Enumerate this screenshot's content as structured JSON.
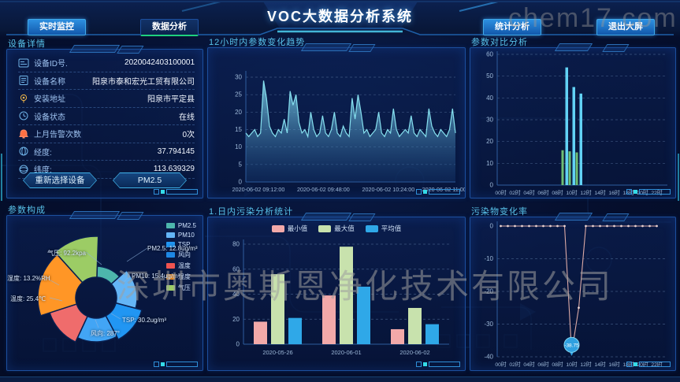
{
  "header": {
    "title": "VOC大数据分析系统",
    "nav": [
      {
        "id": "realtime",
        "label": "实时监控",
        "active": false
      },
      {
        "id": "analysis",
        "label": "数据分析",
        "active": true
      },
      {
        "id": "stats",
        "label": "统计分析",
        "active": false
      },
      {
        "id": "exit",
        "label": "退出大屏",
        "active": false
      }
    ]
  },
  "watermarks": {
    "logo": "chem17.com",
    "company": "深圳市奥斯恩净化技术有限公司"
  },
  "device_panel": {
    "title": "设备详情",
    "rows": [
      {
        "icon": "id-card-icon",
        "label": "设备ID号.",
        "value": "2020042403100001"
      },
      {
        "icon": "document-icon",
        "label": "设备名称",
        "value": "阳泉市泰和宏光工贸有限公司"
      },
      {
        "icon": "location-icon",
        "label": "安装地址",
        "value": "阳泉市平定县"
      },
      {
        "icon": "clock-icon",
        "label": "设备状态",
        "value": "在线"
      },
      {
        "icon": "alarm-bell-icon",
        "label": "上月告警次数",
        "value": "0次"
      },
      {
        "icon": "longitude-icon",
        "label": "经度:",
        "value": "37.794145"
      },
      {
        "icon": "latitude-icon",
        "label": "纬度:",
        "value": "113.639329"
      }
    ],
    "buttons": [
      {
        "id": "reselect-device",
        "label": "重新选择设备"
      },
      {
        "id": "pm25",
        "label": "PM2.5"
      }
    ]
  },
  "trend_panel": {
    "title": "12小时内参数变化趋势",
    "chart_data": {
      "type": "area",
      "ylim": [
        0,
        30
      ],
      "yticks": [
        0,
        5,
        10,
        15,
        20,
        25,
        30
      ],
      "x_labels": [
        "2020-06-02 09:12:00",
        "2020-06-02 09:48:00",
        "2020-06-02 10:24:00",
        "2020-06-02 11:00:00"
      ],
      "line_color": "#86e0ef",
      "values": [
        14,
        13,
        14,
        15,
        13,
        14,
        29,
        24,
        16,
        14,
        13,
        15,
        14,
        18,
        14,
        26,
        22,
        25,
        17,
        14,
        15,
        13,
        20,
        15,
        13,
        14,
        19,
        14,
        13,
        15,
        20,
        14,
        13,
        16,
        14,
        13,
        24,
        18,
        25,
        20,
        14,
        15,
        13,
        14,
        15,
        20,
        14,
        13,
        15,
        14,
        21,
        15,
        13,
        14,
        15,
        14,
        19,
        14,
        13,
        15,
        14,
        13,
        21,
        16,
        14,
        13,
        15,
        14,
        13,
        15,
        21,
        14
      ]
    }
  },
  "daily_panel": {
    "title": "1.日内污染分析统计",
    "chart_data": {
      "type": "bar",
      "categories": [
        "2020-05-26",
        "2020-06-01",
        "2020-06-02"
      ],
      "series": [
        {
          "name": "最小值",
          "color": "#f2a9a9",
          "values": [
            18,
            39,
            12
          ]
        },
        {
          "name": "最大值",
          "color": "#c8e2ad",
          "values": [
            56,
            78,
            29
          ]
        },
        {
          "name": "平均值",
          "color": "#2fa8e8",
          "values": [
            21,
            46,
            16
          ]
        }
      ],
      "ylim": [
        0,
        80
      ],
      "yticks": [
        0,
        20,
        40,
        60,
        80
      ],
      "legend_position": "top"
    }
  },
  "compare_panel": {
    "title": "参数对比分析",
    "chart_data": {
      "type": "bar",
      "x_labels": [
        "00时",
        "02时",
        "04时",
        "06时",
        "08时",
        "10时",
        "12时",
        "14时",
        "16时",
        "18时",
        "20时",
        "22时"
      ],
      "hours_span": 24,
      "ylim": [
        0,
        60
      ],
      "yticks": [
        0,
        10,
        20,
        30,
        40,
        50,
        60
      ],
      "series": [
        {
          "name": "series-green",
          "color": "#6fbf74",
          "points": [
            {
              "hour": 9,
              "value": 16
            },
            {
              "hour": 10,
              "value": 15.5
            },
            {
              "hour": 11,
              "value": 15
            }
          ]
        },
        {
          "name": "series-blue",
          "color": "#62d2f5",
          "points": [
            {
              "hour": 9,
              "value": 54
            },
            {
              "hour": 10,
              "value": 45
            },
            {
              "hour": 11,
              "value": 42
            }
          ]
        }
      ]
    }
  },
  "rate_panel": {
    "title": "污染物变化率",
    "chart_data": {
      "type": "line",
      "x_labels": [
        "00时",
        "02时",
        "04时",
        "06时",
        "08时",
        "10时",
        "12时",
        "14时",
        "16时",
        "18时",
        "20时",
        "22时"
      ],
      "hours_span": 24,
      "ylim": [
        -40,
        0
      ],
      "yticks": [
        0,
        -10,
        -20,
        -30,
        -40
      ],
      "line_color": "#dcaaa6",
      "min_label": "-38.75",
      "points": [
        {
          "hour": 0,
          "value": 0
        },
        {
          "hour": 1,
          "value": 0
        },
        {
          "hour": 2,
          "value": 0
        },
        {
          "hour": 3,
          "value": 0
        },
        {
          "hour": 4,
          "value": 0
        },
        {
          "hour": 5,
          "value": 0
        },
        {
          "hour": 6,
          "value": 0
        },
        {
          "hour": 7,
          "value": 0
        },
        {
          "hour": 8,
          "value": 0
        },
        {
          "hour": 9,
          "value": 0
        },
        {
          "hour": 10,
          "value": -38.75
        },
        {
          "hour": 11,
          "value": -25
        },
        {
          "hour": 12,
          "value": 0
        },
        {
          "hour": 13,
          "value": 0
        },
        {
          "hour": 14,
          "value": 0
        },
        {
          "hour": 15,
          "value": 0
        },
        {
          "hour": 16,
          "value": 0
        },
        {
          "hour": 17,
          "value": 0
        },
        {
          "hour": 18,
          "value": 0
        },
        {
          "hour": 19,
          "value": 0
        },
        {
          "hour": 20,
          "value": 0
        },
        {
          "hour": 21,
          "value": 0
        },
        {
          "hour": 22,
          "value": 0
        }
      ]
    }
  },
  "composition_panel": {
    "title": "参数构成",
    "chart_data": {
      "type": "pie",
      "style": "nightingale-rose",
      "legend": [
        {
          "label": "PM2.5",
          "color": "#4db6ac"
        },
        {
          "label": "PM10",
          "color": "#64b5f6"
        },
        {
          "label": "TSP",
          "color": "#2196f3"
        },
        {
          "label": "风向",
          "color": "#1e88e5"
        },
        {
          "label": "温度",
          "color": "#ef5350"
        },
        {
          "label": "湿度",
          "color": "#ff9626"
        },
        {
          "label": "气压",
          "color": "#9ccc65"
        }
      ],
      "slices": [
        {
          "name": "PM2.5",
          "value": 12.8,
          "unit": "ug/m³",
          "callout": "PM2.5: 12.8ug/m³",
          "color": "#4db6ac",
          "a0": 2,
          "a1": 48,
          "r": 40
        },
        {
          "name": "PM10",
          "value": 15.4,
          "unit": "ug/m³",
          "callout": "PM10: 15.4ug/m³",
          "color": "#64b5f6",
          "a0": 48,
          "a1": 105,
          "r": 52
        },
        {
          "name": "TSP",
          "value": 30.2,
          "unit": "ug/m³",
          "callout": "TSP: 30.2ug/m³",
          "color": "#2196f3",
          "a0": 105,
          "a1": 152,
          "r": 60
        },
        {
          "name": "风向",
          "value": 287,
          "unit": "°",
          "callout": "风向: 287°",
          "color": "#42a5f5",
          "a0": 152,
          "a1": 205,
          "r": 56
        },
        {
          "name": "温度",
          "value": 25.4,
          "unit": "℃",
          "callout": "温度: 25.4℃",
          "color": "#ef6c6c",
          "a0": 205,
          "a1": 252,
          "r": 62
        },
        {
          "name": "湿度",
          "value": 13.2,
          "unit": "%RH",
          "callout": "湿度: 13.2%RH",
          "color": "#ff9626",
          "a0": 252,
          "a1": 318,
          "r": 74
        },
        {
          "name": "气压",
          "value": 92.2,
          "unit": "kpa",
          "callout": "气压: 92.2kpa",
          "color": "#9ccc65",
          "a0": 318,
          "a1": 362,
          "r": 78
        }
      ]
    }
  }
}
